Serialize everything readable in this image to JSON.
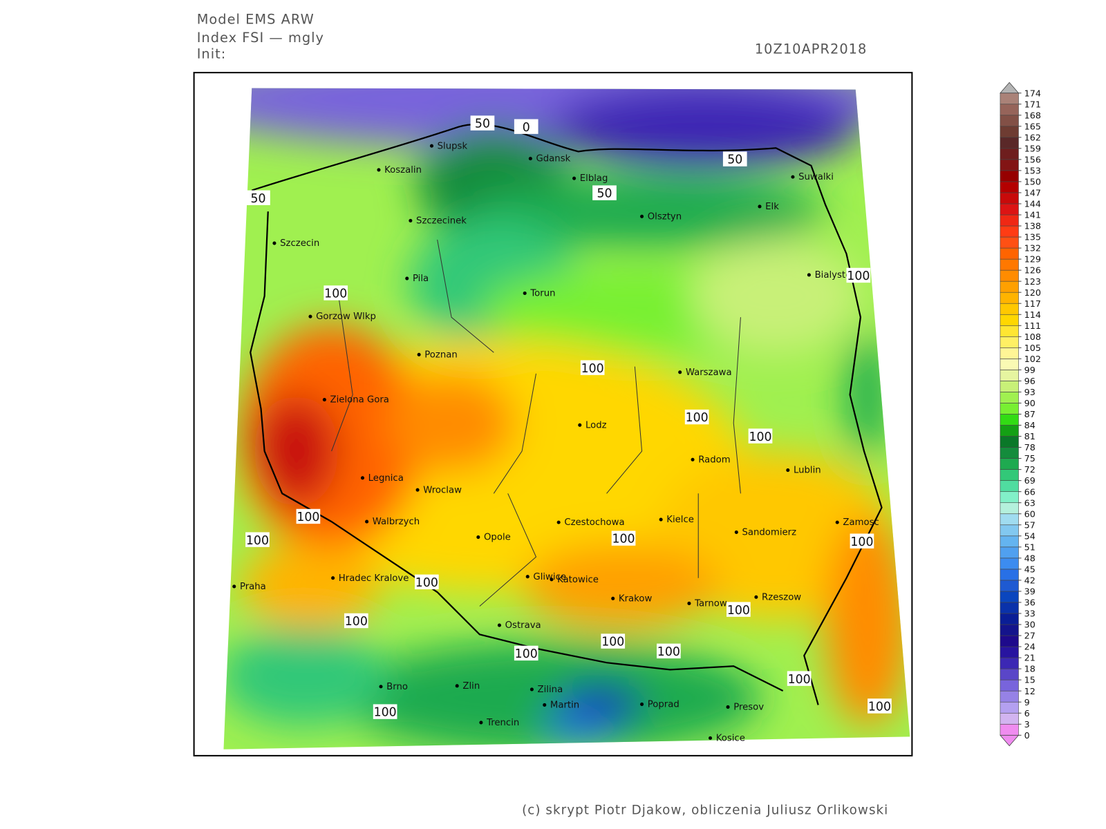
{
  "header": {
    "model": "Model EMS ARW",
    "index": "Index FSI — mgly",
    "init": "Init:",
    "date": "10Z10APR2018"
  },
  "footer": "(c) skrypt Piotr Djakow, obliczenia Juliusz Orlikowski",
  "cities": [
    "Slupsk",
    "Koszalin",
    "Gdansk",
    "Elblag",
    "Suwalki",
    "Elk",
    "Olsztyn",
    "Szczecinek",
    "Szczecin",
    "Pila",
    "Torun",
    "Bialystok",
    "Gorzow Wlkp",
    "Poznan",
    "Warszawa",
    "Zielona Gora",
    "Lodz",
    "Radom",
    "Lublin",
    "Legnica",
    "Wroclaw",
    "Walbrzych",
    "Czestochowa",
    "Kielce",
    "Sandomierz",
    "Zamosc",
    "Opole",
    "Praha",
    "Hradec Kralove",
    "Gliwice",
    "Katowice",
    "Krakow",
    "Tarnow",
    "Rzeszow",
    "Ostrava",
    "Brno",
    "Zlin",
    "Zilina",
    "Martin",
    "Poprad",
    "Presov",
    "Trencin",
    "Kosice"
  ],
  "contour_labels": [
    50,
    0,
    50,
    50,
    50,
    100,
    100,
    100,
    100,
    100,
    100,
    100,
    100,
    100,
    100,
    100,
    100,
    100,
    100,
    100,
    100,
    100,
    100
  ],
  "colorbar": {
    "ticks": [
      0,
      3,
      6,
      9,
      12,
      15,
      18,
      21,
      24,
      27,
      30,
      33,
      36,
      39,
      42,
      45,
      48,
      51,
      54,
      57,
      60,
      63,
      66,
      69,
      72,
      75,
      78,
      81,
      84,
      87,
      90,
      93,
      96,
      99,
      102,
      105,
      108,
      111,
      114,
      117,
      120,
      123,
      126,
      129,
      132,
      135,
      138,
      141,
      144,
      147,
      150,
      153,
      156,
      159,
      162,
      165,
      168,
      171,
      174
    ],
    "colors": [
      "#f08cf0",
      "#d2b4f0",
      "#b4a0f0",
      "#9682e6",
      "#7864dc",
      "#5a46c8",
      "#3c28b4",
      "#2814a0",
      "#1e0a8c",
      "#14148c",
      "#0a1e96",
      "#0a32aa",
      "#0a46be",
      "#1e5ad2",
      "#2870e6",
      "#3c8cf0",
      "#50a0f0",
      "#64b4f0",
      "#82c8f0",
      "#a0dcf0",
      "#b4f0dc",
      "#82f0c8",
      "#50dca0",
      "#32c878",
      "#1eaa50",
      "#148c3c",
      "#0a7828",
      "#14a014",
      "#32dc14",
      "#78f032",
      "#a0f050",
      "#c8f078",
      "#e6f5a0",
      "#fafab4",
      "#fff596",
      "#fff064",
      "#ffe632",
      "#ffd700",
      "#ffc800",
      "#ffb400",
      "#ffa000",
      "#ff8c00",
      "#ff7800",
      "#ff6400",
      "#ff5014",
      "#ff3c14",
      "#f02814",
      "#dc1414",
      "#c80a0a",
      "#b40000",
      "#960000",
      "#821414",
      "#6e1e1e",
      "#5a2828",
      "#6e3c32",
      "#825046",
      "#96645a",
      "#aa8278"
    ],
    "over_color": "#b4b4b4",
    "under_color": "#f08cf0"
  }
}
